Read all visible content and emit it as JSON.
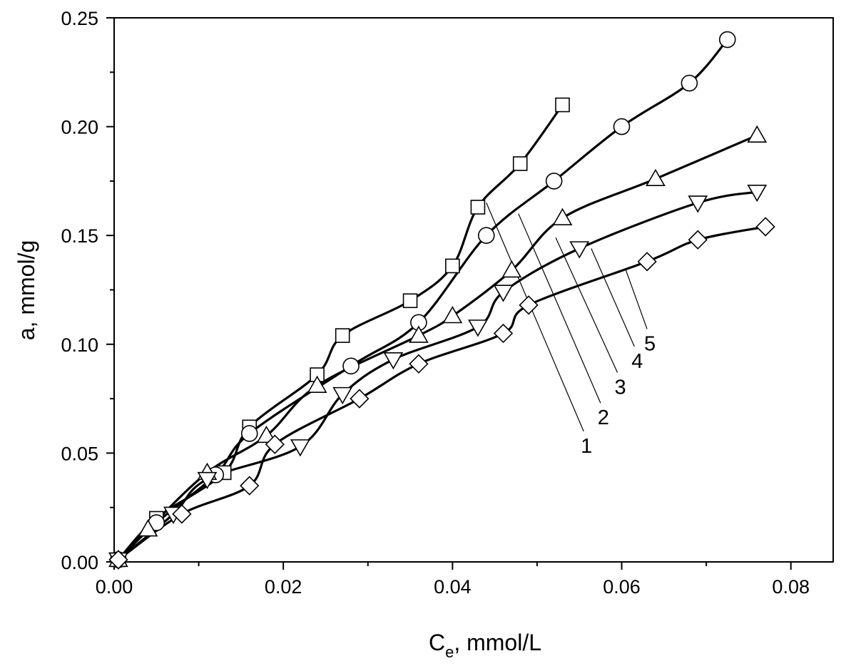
{
  "chart_data": {
    "type": "line",
    "title": "",
    "xlabel_main": "C",
    "xlabel_sub": "e",
    "xlabel_rest": ", mmol/L",
    "ylabel": "a, mmol/g",
    "xlim": [
      0,
      0.085
    ],
    "ylim": [
      0,
      0.25
    ],
    "xticks": [
      "0.00",
      "0.02",
      "0.04",
      "0.06",
      "0.08"
    ],
    "xtick_values": [
      0,
      0.02,
      0.04,
      0.06,
      0.08
    ],
    "yticks": [
      "0.00",
      "0.05",
      "0.10",
      "0.15",
      "0.20",
      "0.25"
    ],
    "ytick_values": [
      0,
      0.05,
      0.1,
      0.15,
      0.2,
      0.25
    ],
    "grid": false,
    "series": [
      {
        "name": "1",
        "marker": "square",
        "x": [
          0.0005,
          0.005,
          0.013,
          0.016,
          0.024,
          0.027,
          0.035,
          0.04,
          0.043,
          0.048,
          0.053
        ],
        "y": [
          0.001,
          0.02,
          0.041,
          0.062,
          0.086,
          0.104,
          0.12,
          0.136,
          0.163,
          0.183,
          0.21
        ]
      },
      {
        "name": "2",
        "marker": "circle",
        "x": [
          0.0005,
          0.005,
          0.012,
          0.016,
          0.028,
          0.036,
          0.044,
          0.052,
          0.06,
          0.068,
          0.0725
        ],
        "y": [
          0.001,
          0.018,
          0.04,
          0.059,
          0.09,
          0.11,
          0.15,
          0.175,
          0.2,
          0.22,
          0.24
        ]
      },
      {
        "name": "3",
        "marker": "triangle-up",
        "x": [
          0.0005,
          0.004,
          0.011,
          0.018,
          0.024,
          0.036,
          0.04,
          0.047,
          0.053,
          0.064,
          0.076
        ],
        "y": [
          0.001,
          0.015,
          0.041,
          0.058,
          0.081,
          0.104,
          0.113,
          0.134,
          0.158,
          0.176,
          0.196
        ]
      },
      {
        "name": "4",
        "marker": "triangle-down",
        "x": [
          0.0005,
          0.007,
          0.011,
          0.022,
          0.027,
          0.033,
          0.043,
          0.046,
          0.055,
          0.069,
          0.076
        ],
        "y": [
          0.001,
          0.022,
          0.038,
          0.053,
          0.077,
          0.093,
          0.108,
          0.124,
          0.144,
          0.165,
          0.17
        ]
      },
      {
        "name": "5",
        "marker": "diamond",
        "x": [
          0.0005,
          0.008,
          0.016,
          0.019,
          0.029,
          0.036,
          0.046,
          0.049,
          0.063,
          0.069,
          0.077
        ],
        "y": [
          0.001,
          0.022,
          0.035,
          0.054,
          0.075,
          0.091,
          0.105,
          0.118,
          0.138,
          0.148,
          0.154
        ]
      }
    ],
    "annotations": [
      {
        "label": "1",
        "x": 0.044,
        "y": 0.165,
        "tx": 0.0555,
        "ty": 0.06
      },
      {
        "label": "2",
        "x": 0.0478,
        "y": 0.16,
        "tx": 0.0575,
        "ty": 0.073
      },
      {
        "label": "3",
        "x": 0.0522,
        "y": 0.149,
        "tx": 0.0595,
        "ty": 0.087
      },
      {
        "label": "4",
        "x": 0.0564,
        "y": 0.144,
        "tx": 0.0615,
        "ty": 0.099
      },
      {
        "label": "5",
        "x": 0.0605,
        "y": 0.134,
        "tx": 0.063,
        "ty": 0.107
      }
    ]
  }
}
